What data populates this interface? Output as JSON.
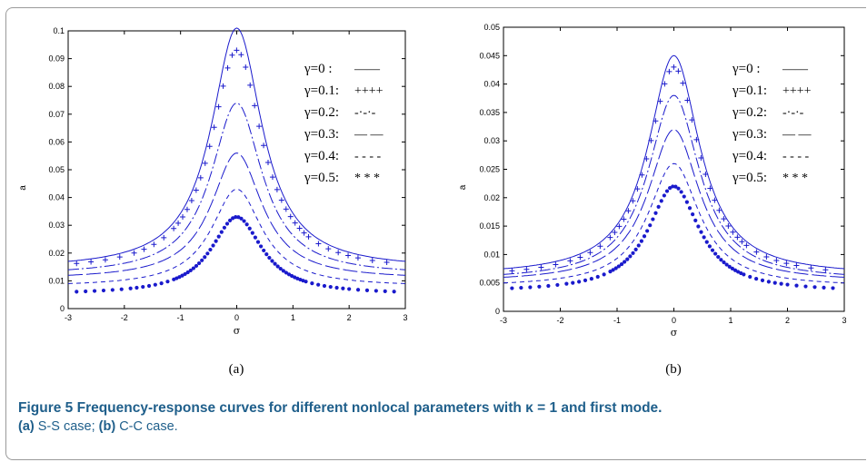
{
  "figure": {
    "caption_title": "Figure 5 Frequency-response curves for different nonlocal parameters with κ = 1 and first mode.",
    "caption_sub_a_tag": "(a)",
    "caption_sub_a_text": " S-S case; ",
    "caption_sub_b_tag": "(b)",
    "caption_sub_b_text": " C-C case."
  },
  "chart_data": [
    {
      "type": "line",
      "panel_label": "(a)",
      "xlabel": "σ",
      "ylabel": "a",
      "xlim": [
        -3,
        3
      ],
      "ylim": [
        0,
        0.1
      ],
      "xticks": [
        "-3",
        "-2",
        "-1",
        "0",
        "1",
        "2",
        "3"
      ],
      "yticks": [
        "0",
        "0.01",
        "0.02",
        "0.03",
        "0.04",
        "0.05",
        "0.06",
        "0.07",
        "0.08",
        "0.09",
        "0.1"
      ],
      "grid": false,
      "legend_position": "top-right",
      "line_color": "#1a1acc",
      "series": [
        {
          "name": "γ=0  :",
          "peak": 0.101,
          "edge": 0.017,
          "style": "solid"
        },
        {
          "name": "γ=0.1:",
          "peak": 0.093,
          "edge": 0.016,
          "style": "plus"
        },
        {
          "name": "γ=0.2:",
          "peak": 0.074,
          "edge": 0.014,
          "style": "dashdot"
        },
        {
          "name": "γ=0.3:",
          "peak": 0.056,
          "edge": 0.012,
          "style": "longdash"
        },
        {
          "name": "γ=0.4:",
          "peak": 0.043,
          "edge": 0.009,
          "style": "shortdash"
        },
        {
          "name": "γ=0.5:",
          "peak": 0.033,
          "edge": 0.006,
          "style": "dots"
        }
      ],
      "legend_marks": [
        "——",
        "++++",
        "-·-·-",
        "— —",
        "- - - -",
        "* * *"
      ]
    },
    {
      "type": "line",
      "panel_label": "(b)",
      "xlabel": "σ",
      "ylabel": "a",
      "xlim": [
        -3,
        3
      ],
      "ylim": [
        0,
        0.05
      ],
      "xticks": [
        "-3",
        "-2",
        "-1",
        "0",
        "1",
        "2",
        "3"
      ],
      "yticks": [
        "0",
        "0.005",
        "0.01",
        "0.015",
        "0.02",
        "0.025",
        "0.03",
        "0.035",
        "0.04",
        "0.045",
        "0.05"
      ],
      "grid": false,
      "legend_position": "top-right",
      "line_color": "#1a1acc",
      "series": [
        {
          "name": "γ=0  :",
          "peak": 0.045,
          "edge": 0.0075,
          "style": "solid"
        },
        {
          "name": "γ=0.1:",
          "peak": 0.043,
          "edge": 0.007,
          "style": "plus"
        },
        {
          "name": "γ=0.2:",
          "peak": 0.038,
          "edge": 0.0065,
          "style": "dashdot"
        },
        {
          "name": "γ=0.3:",
          "peak": 0.032,
          "edge": 0.006,
          "style": "longdash"
        },
        {
          "name": "γ=0.4:",
          "peak": 0.026,
          "edge": 0.005,
          "style": "shortdash"
        },
        {
          "name": "γ=0.5:",
          "peak": 0.022,
          "edge": 0.004,
          "style": "dots"
        }
      ],
      "legend_marks": [
        "——",
        "++++",
        "-·-·-",
        "— —",
        "- - - -",
        "* * *"
      ]
    }
  ]
}
